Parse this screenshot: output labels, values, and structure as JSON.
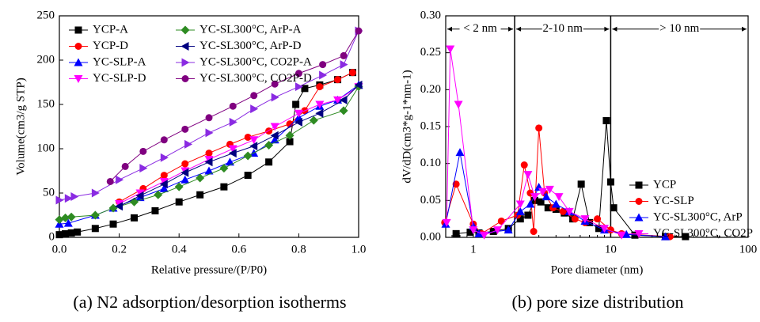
{
  "chart_data": [
    {
      "type": "scatter",
      "caption": "(a) N2 adsorption/desorption isotherms",
      "x_label": "Relative pressure/(P/P0)",
      "y_label": "Volume(cm3/g STP)",
      "xlim": [
        0,
        1
      ],
      "ylim": [
        0,
        250
      ],
      "xticks": [
        {
          "value": 0,
          "label": "0.0"
        },
        {
          "value": 0.2,
          "label": "0.2"
        },
        {
          "value": 0.4,
          "label": "0.4"
        },
        {
          "value": 0.6,
          "label": "0.6"
        },
        {
          "value": 0.8,
          "label": "0.8"
        },
        {
          "value": 1,
          "label": "1.0"
        }
      ],
      "yticks": [
        0,
        50,
        100,
        150,
        200,
        250
      ],
      "legend": "upper left",
      "legend_columns": 2,
      "series": [
        {
          "name": "YCP-A",
          "color": "#000000",
          "marker": "square",
          "x": [
            0,
            0.02,
            0.04,
            0.06,
            0.12,
            0.18,
            0.25,
            0.32,
            0.4,
            0.47,
            0.55,
            0.63,
            0.7,
            0.77,
            0.79,
            0.82,
            0.87,
            0.93,
            0.98
          ],
          "values": [
            3,
            4,
            5,
            6,
            10,
            15,
            22,
            30,
            40,
            48,
            57,
            70,
            85,
            108,
            150,
            168,
            172,
            178,
            186
          ]
        },
        {
          "name": "YCP-D",
          "color": "#ff0000",
          "marker": "circle",
          "x": [
            0.98,
            0.93,
            0.87,
            0.82,
            0.77,
            0.7,
            0.63,
            0.57,
            0.5,
            0.42,
            0.35,
            0.28,
            0.2
          ],
          "values": [
            186,
            178,
            170,
            143,
            128,
            120,
            113,
            105,
            95,
            83,
            70,
            55,
            40
          ]
        },
        {
          "name": "YC-SLP-A",
          "color": "#0000ff",
          "marker": "triangle-up",
          "x": [
            0,
            0.03,
            0.12,
            0.18,
            0.27,
            0.35,
            0.42,
            0.5,
            0.57,
            0.65,
            0.72,
            0.8,
            0.87,
            0.93,
            1
          ],
          "values": [
            15,
            16,
            25,
            33,
            45,
            55,
            65,
            75,
            85,
            95,
            110,
            135,
            148,
            155,
            172
          ]
        },
        {
          "name": "YC-SLP-D",
          "color": "#ff00ff",
          "marker": "triangle-down",
          "x": [
            1,
            0.93,
            0.87,
            0.8,
            0.72,
            0.65,
            0.58,
            0.5,
            0.42,
            0.35,
            0.27,
            0.2
          ],
          "values": [
            170,
            155,
            150,
            140,
            125,
            110,
            100,
            88,
            75,
            63,
            50,
            38
          ]
        },
        {
          "name": "YC-SL300°C, ArP-A",
          "color": "#2e8b22",
          "marker": "diamond",
          "x": [
            0,
            0.02,
            0.04,
            0.12,
            0.18,
            0.25,
            0.33,
            0.4,
            0.47,
            0.55,
            0.63,
            0.7,
            0.77,
            0.85,
            0.95,
            1
          ],
          "values": [
            20,
            22,
            23,
            25,
            33,
            40,
            48,
            57,
            67,
            78,
            92,
            104,
            115,
            132,
            143,
            170
          ]
        },
        {
          "name": "YC-SL300°C, ArP-D",
          "color": "#000080",
          "marker": "triangle-left",
          "x": [
            1,
            0.95,
            0.87,
            0.8,
            0.72,
            0.65,
            0.58,
            0.5,
            0.42,
            0.35,
            0.27,
            0.2
          ],
          "values": [
            172,
            155,
            140,
            130,
            115,
            103,
            95,
            85,
            73,
            60,
            47,
            35
          ]
        },
        {
          "name": "YC-SL300°C, CO2P-A",
          "color": "#8a2be2",
          "marker": "triangle-right",
          "x": [
            0,
            0.03,
            0.05,
            0.12,
            0.2,
            0.28,
            0.35,
            0.43,
            0.5,
            0.58,
            0.65,
            0.72,
            0.8,
            0.88,
            0.95,
            1
          ],
          "values": [
            42,
            44,
            46,
            50,
            65,
            78,
            90,
            105,
            118,
            130,
            145,
            158,
            170,
            183,
            195,
            233
          ]
        },
        {
          "name": "YC-SL300°C, CO2P-D",
          "color": "#800080",
          "marker": "circle",
          "x": [
            1,
            0.95,
            0.88,
            0.8,
            0.72,
            0.65,
            0.58,
            0.5,
            0.42,
            0.35,
            0.28,
            0.22,
            0.17
          ],
          "values": [
            233,
            205,
            195,
            185,
            173,
            160,
            148,
            135,
            122,
            110,
            97,
            80,
            63
          ]
        }
      ]
    },
    {
      "type": "scatter",
      "caption": "(b) pore size distribution",
      "x_label": "Pore diameter (nm)",
      "y_label": "dV/dD(cm3*g-1*nm-1)",
      "xscale": "log",
      "xlim": [
        0.63,
        100
      ],
      "ylim": [
        0,
        0.3
      ],
      "xticks": [
        1,
        10,
        100
      ],
      "yticks": [
        {
          "value": 0,
          "label": "0.00"
        },
        {
          "value": 0.05,
          "label": "0.05"
        },
        {
          "value": 0.1,
          "label": "0.10"
        },
        {
          "value": 0.15,
          "label": "0.15"
        },
        {
          "value": 0.2,
          "label": "0.20"
        },
        {
          "value": 0.25,
          "label": "0.25"
        },
        {
          "value": 0.3,
          "label": "0.30"
        }
      ],
      "vlines": [
        2,
        10
      ],
      "region_labels": [
        "< 2 nm",
        "2-10 nm",
        "> 10 nm"
      ],
      "legend": "lower right",
      "legend_columns": 1,
      "series": [
        {
          "name": "YCP",
          "color": "#000000",
          "marker": "square",
          "x": [
            0.75,
            0.95,
            1.1,
            1.4,
            1.8,
            2.2,
            2.5,
            2.8,
            3.1,
            3.5,
            4,
            4.6,
            5.3,
            6.1,
            7,
            8.2,
            9.3,
            10,
            10.5,
            15,
            25,
            35
          ],
          "values": [
            0.005,
            0.007,
            0.006,
            0.008,
            0.012,
            0.025,
            0.03,
            0.05,
            0.048,
            0.04,
            0.038,
            0.033,
            0.025,
            0.072,
            0.02,
            0.012,
            0.158,
            0.075,
            0.04,
            0.003,
            0.001,
            0.001
          ]
        },
        {
          "name": "YC-SLP",
          "color": "#ff0000",
          "marker": "circle",
          "x": [
            0.62,
            0.75,
            1,
            1.15,
            1.6,
            2.1,
            2.35,
            2.6,
            2.75,
            3,
            3.3,
            3.8,
            4.5,
            5.5,
            6.5,
            8,
            10,
            12,
            27
          ],
          "values": [
            0.02,
            0.072,
            0.018,
            0.005,
            0.022,
            0.03,
            0.098,
            0.06,
            0.008,
            0.148,
            0.06,
            0.04,
            0.035,
            0.025,
            0.02,
            0.025,
            0.01,
            0.005,
            0.001
          ]
        },
        {
          "name": "YC-SL300°C, ArP",
          "color": "#0000ff",
          "marker": "triangle-up",
          "x": [
            0.63,
            0.8,
            1,
            1.1,
            1.8,
            2.2,
            2.6,
            3,
            3.4,
            4,
            5,
            6.5,
            9,
            13,
            25
          ],
          "values": [
            0.018,
            0.115,
            0.015,
            0.005,
            0.01,
            0.035,
            0.045,
            0.068,
            0.055,
            0.045,
            0.035,
            0.022,
            0.01,
            0.004,
            0.001
          ]
        },
        {
          "name": "YC-SL300°C, CO2P",
          "color": "#ff00ff",
          "marker": "triangle-down",
          "x": [
            0.64,
            0.68,
            0.78,
            1,
            1.2,
            1.5,
            2.2,
            2.5,
            2.8,
            3.2,
            3.6,
            4.2,
            5,
            6.5,
            9,
            12
          ],
          "values": [
            0.02,
            0.255,
            0.18,
            0.01,
            0.003,
            0.01,
            0.045,
            0.085,
            0.055,
            0.062,
            0.065,
            0.055,
            0.035,
            0.025,
            0.012,
            0.003
          ]
        }
      ]
    }
  ]
}
